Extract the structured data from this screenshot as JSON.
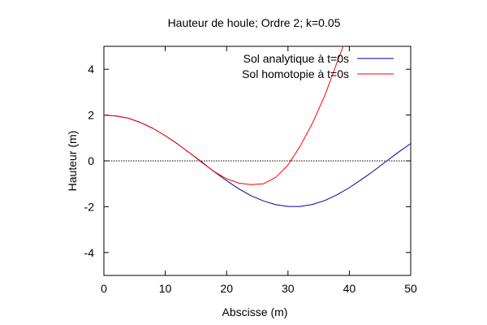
{
  "chart_data": {
    "type": "line",
    "title": "Hauteur de houle; Ordre 2; k=0.05",
    "xlabel": "Abscisse (m)",
    "ylabel": "Hauteur (m)",
    "xlim": [
      0,
      50
    ],
    "ylim": [
      -5,
      5
    ],
    "xticks": [
      0,
      10,
      20,
      30,
      40,
      50
    ],
    "yticks": [
      -4,
      -2,
      0,
      2,
      4
    ],
    "legend_position": "top-right",
    "zero_line": true,
    "series": [
      {
        "name": "Sol analytique à t=0s",
        "color": "#0000a0",
        "x": [
          0,
          2,
          4,
          6,
          8,
          10,
          12,
          14,
          16,
          18,
          20,
          22,
          24,
          26,
          28,
          30,
          32,
          34,
          36,
          38,
          40,
          42,
          44,
          46,
          48,
          50
        ],
        "y": [
          2.0,
          1.96,
          1.86,
          1.67,
          1.42,
          1.1,
          0.74,
          0.34,
          -0.06,
          -0.48,
          -0.86,
          -1.22,
          -1.52,
          -1.75,
          -1.91,
          -1.99,
          -1.99,
          -1.9,
          -1.73,
          -1.48,
          -1.17,
          -0.81,
          -0.43,
          -0.02,
          0.38,
          0.76
        ]
      },
      {
        "name": "Sol homotopie à t=0s",
        "color": "#ff0000",
        "x": [
          0,
          2,
          4,
          6,
          8,
          10,
          12,
          14,
          16,
          18,
          20,
          22,
          24,
          26,
          28,
          30,
          32,
          34,
          36,
          38,
          39
        ],
        "y": [
          2.0,
          1.96,
          1.86,
          1.67,
          1.42,
          1.1,
          0.74,
          0.34,
          -0.08,
          -0.47,
          -0.78,
          -0.97,
          -1.04,
          -1.0,
          -0.72,
          -0.18,
          0.65,
          1.65,
          2.85,
          4.3,
          5.0
        ]
      }
    ]
  }
}
